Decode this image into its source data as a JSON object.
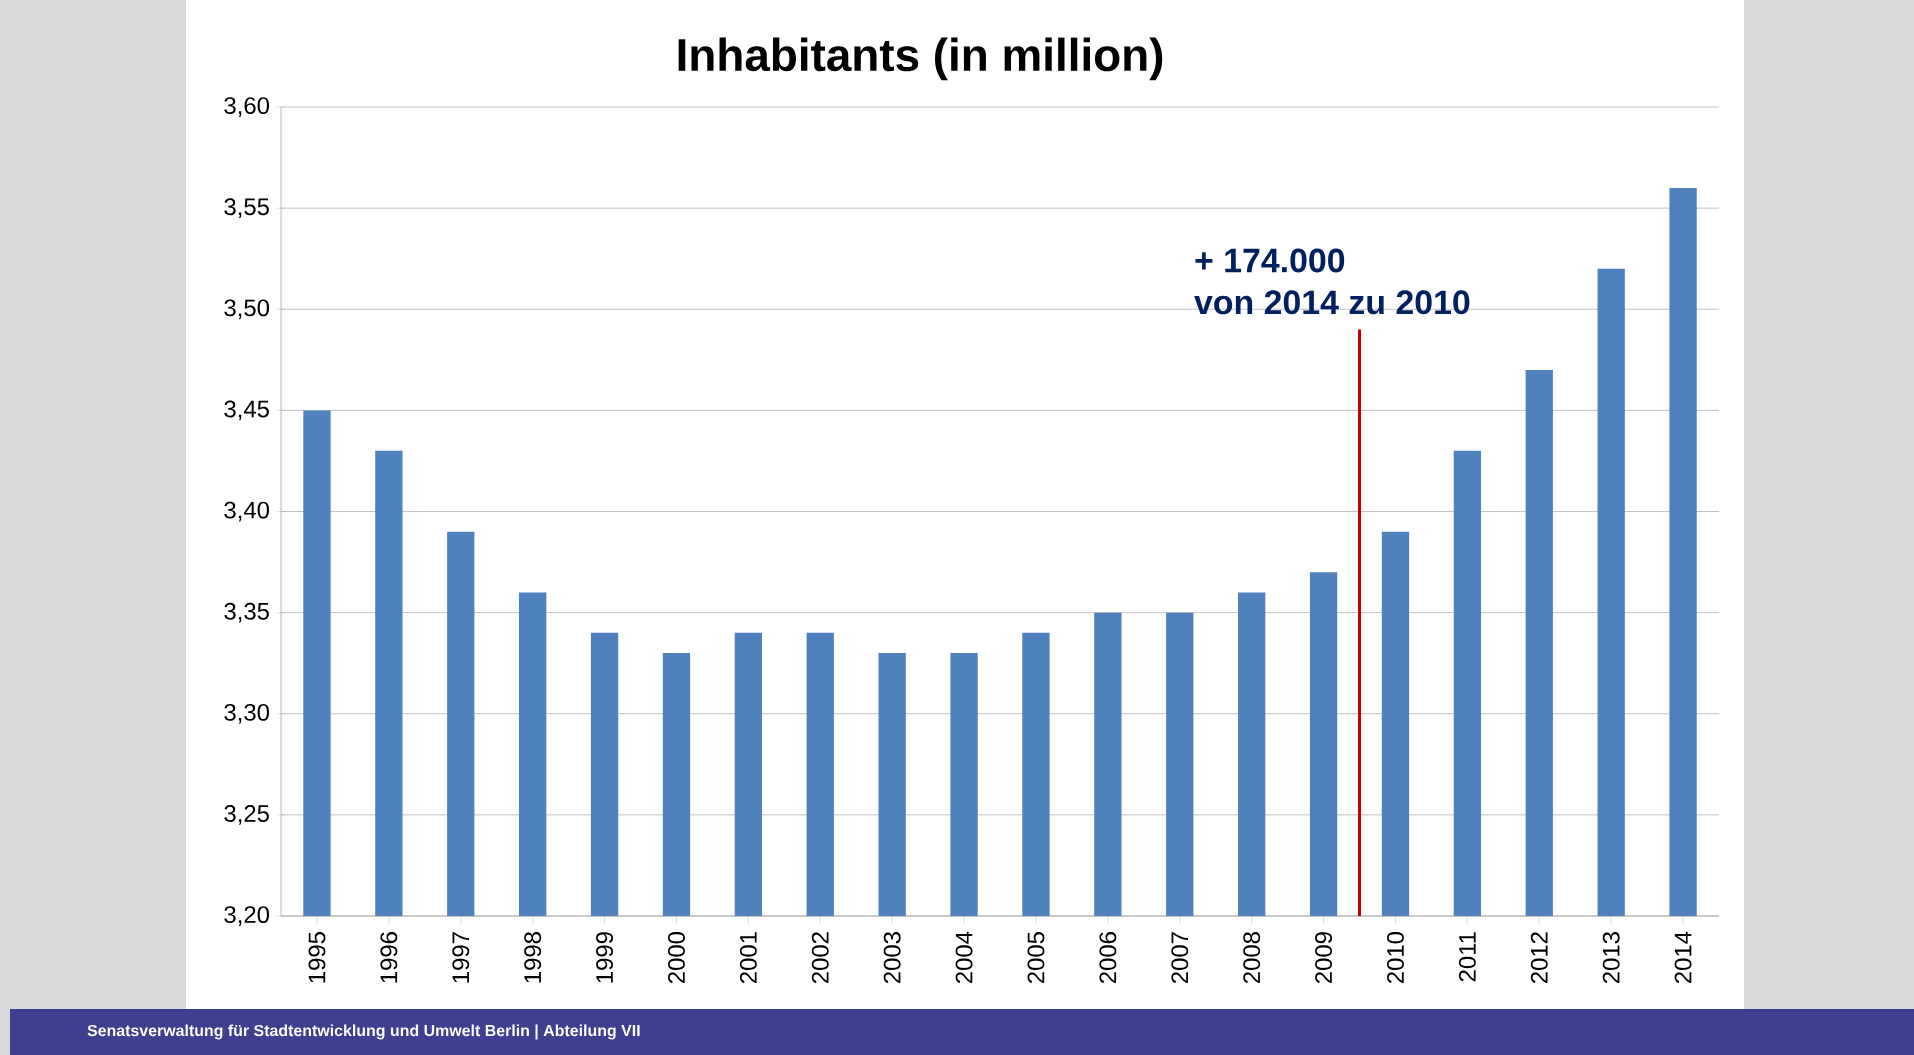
{
  "chart_data": {
    "type": "bar",
    "title": "Inhabitants (in million)",
    "categories": [
      "1995",
      "1996",
      "1997",
      "1998",
      "1999",
      "2000",
      "2001",
      "2002",
      "2003",
      "2004",
      "2005",
      "2006",
      "2007",
      "2008",
      "2009",
      "2010",
      "2011",
      "2012",
      "2013",
      "2014"
    ],
    "values": [
      3.45,
      3.43,
      3.39,
      3.36,
      3.34,
      3.33,
      3.34,
      3.34,
      3.33,
      3.33,
      3.34,
      3.35,
      3.35,
      3.36,
      3.37,
      3.39,
      3.43,
      3.47,
      3.52,
      3.56
    ],
    "color": "#4f81bd",
    "ylim": [
      3.2,
      3.6
    ],
    "yticks": [
      {
        "value": 3.2,
        "label": "3,20"
      },
      {
        "value": 3.25,
        "label": "3,25"
      },
      {
        "value": 3.3,
        "label": "3,30"
      },
      {
        "value": 3.35,
        "label": "3,35"
      },
      {
        "value": 3.4,
        "label": "3,40"
      },
      {
        "value": 3.45,
        "label": "3,45"
      },
      {
        "value": 3.5,
        "label": "3,50"
      },
      {
        "value": 3.55,
        "label": "3,55"
      },
      {
        "value": 3.6,
        "label": "3,60"
      }
    ],
    "grid": "y",
    "annotations": [
      "+ 174.000",
      "von 2014 zu 2010",
      "Senatsverwaltung für Stadtentwicklung und Umwelt Berlin | Abteilung VII"
    ]
  }
}
